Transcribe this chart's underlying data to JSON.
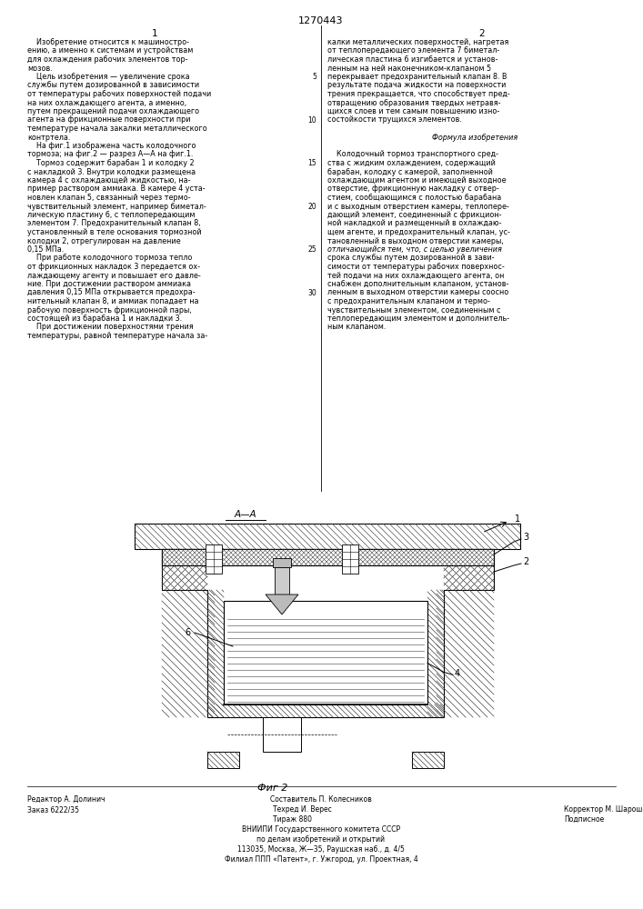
{
  "title": "1270443",
  "background": "#ffffff",
  "text_color": "#000000",
  "col1_text": [
    "    Изобретение относится к машиностро-",
    "ению, а именно к системам и устройствам",
    "для охлаждения рабочих элементов тор-",
    "мозов.",
    "    Цель изобретения — увеличение срока",
    "службы путем дозированной в зависимости",
    "от температуры рабочих поверхностей подачи",
    "на них охлаждающего агента, а именно,",
    "путем прекращений подачи охлаждающего",
    "агента на фрикционные поверхности при",
    "температуре начала закалки металлического",
    "контртела.",
    "    На фиг.1 изображена часть колодочного",
    "тормоза; на фиг.2 — разрез А—А на фиг.1.",
    "    Тормоз содержит барабан 1 и колодку 2",
    "с накладкой 3. Внутри колодки размещена",
    "камера 4 с охлаждающей жидкостью, на-",
    "пример раствором аммиака. В камере 4 уста-",
    "новлен клапан 5, связанный через термо-",
    "чувствительный элемент, например биметал-",
    "лическую пластину 6, с теплопередающим",
    "элементом 7. Предохранительный клапан 8,",
    "установленный в теле основания тормозной",
    "колодки 2, отрегулирован на давление",
    "0,15 МПа.",
    "    При работе колодочного тормоза тепло",
    "от фрикционных накладок 3 передается ох-",
    "лаждающему агенту и повышает его давле-",
    "ние. При достижении раствором аммиака",
    "давления 0,15 МПа открывается предохра-",
    "нительный клапан 8, и аммиак попадает на",
    "рабочую поверхность фрикционной пары,",
    "состоящей из барабана 1 и накладки 3.",
    "    При достижении поверхностями трения",
    "температуры, равной температуре начала за-"
  ],
  "col2_text": [
    "калки металлических поверхностей, нагретая",
    "от теплопередающего элемента 7 биметал-",
    "лическая пластина 6 изгибается и установ-",
    "ленным на ней наконечником-клапаном 5",
    "перекрывает предохранительный клапан 8. В",
    "результате подача жидкости на поверхности",
    "трения прекращается, что способствует пред-",
    "отвращению образования твердых нетравя-",
    "щихся слоев и тем самым повышению изно-",
    "состойкости трущихся элементов.",
    "",
    "Формула изобретения",
    "",
    "    Колодочный тормоз транспортного сред-",
    "ства с жидким охлаждением, содержащий",
    "барабан, колодку с камерой, заполненной",
    "охлаждающим агентом и имеющей выходное",
    "отверстие, фрикционную накладку с отвер-",
    "стием, сообщающимся с полостью барабана",
    "и с выходным отверстием камеры, теплопере-",
    "дающий элемент, соединенный с фрикцион-",
    "ной накладкой и размещенный в охлаждаю-",
    "щем агенте, и предохранительный клапан, ус-",
    "тановленный в выходном отверстии камеры,",
    "отличающийся тем, что, с целью увеличения",
    "срока службы путем дозированной в зави-",
    "симости от температуры рабочих поверхнос-",
    "тей подачи на них охлаждающего агента, он",
    "снабжен дополнительным клапаном, установ-",
    "ленным в выходном отверстии камеры соосно",
    "с предохранительным клапаном и термо-",
    "чувствительным элементом, соединенным с",
    "теплопередающим элементом и дополнитель-",
    "ным клапаном."
  ],
  "footer_col_left": [
    "Редактор А. Долинич",
    "Заказ 6222/35"
  ],
  "footer_col_center_top": "Составитель П. Колесников",
  "footer_col_center": [
    "Техред И. Верес",
    "Тираж 880"
  ],
  "footer_col_right": [
    "Корректор М. Шароши",
    "Подписное"
  ],
  "footer_center_lines": [
    "ВНИИПИ Государственного комитета СССР",
    "по делам изобретений и открытий",
    "113035, Москва, Ж—35, Раушская наб., д. 4/5",
    "Филиал ППП «Патент», г. Ужгород, ул. Проектная, 4"
  ]
}
